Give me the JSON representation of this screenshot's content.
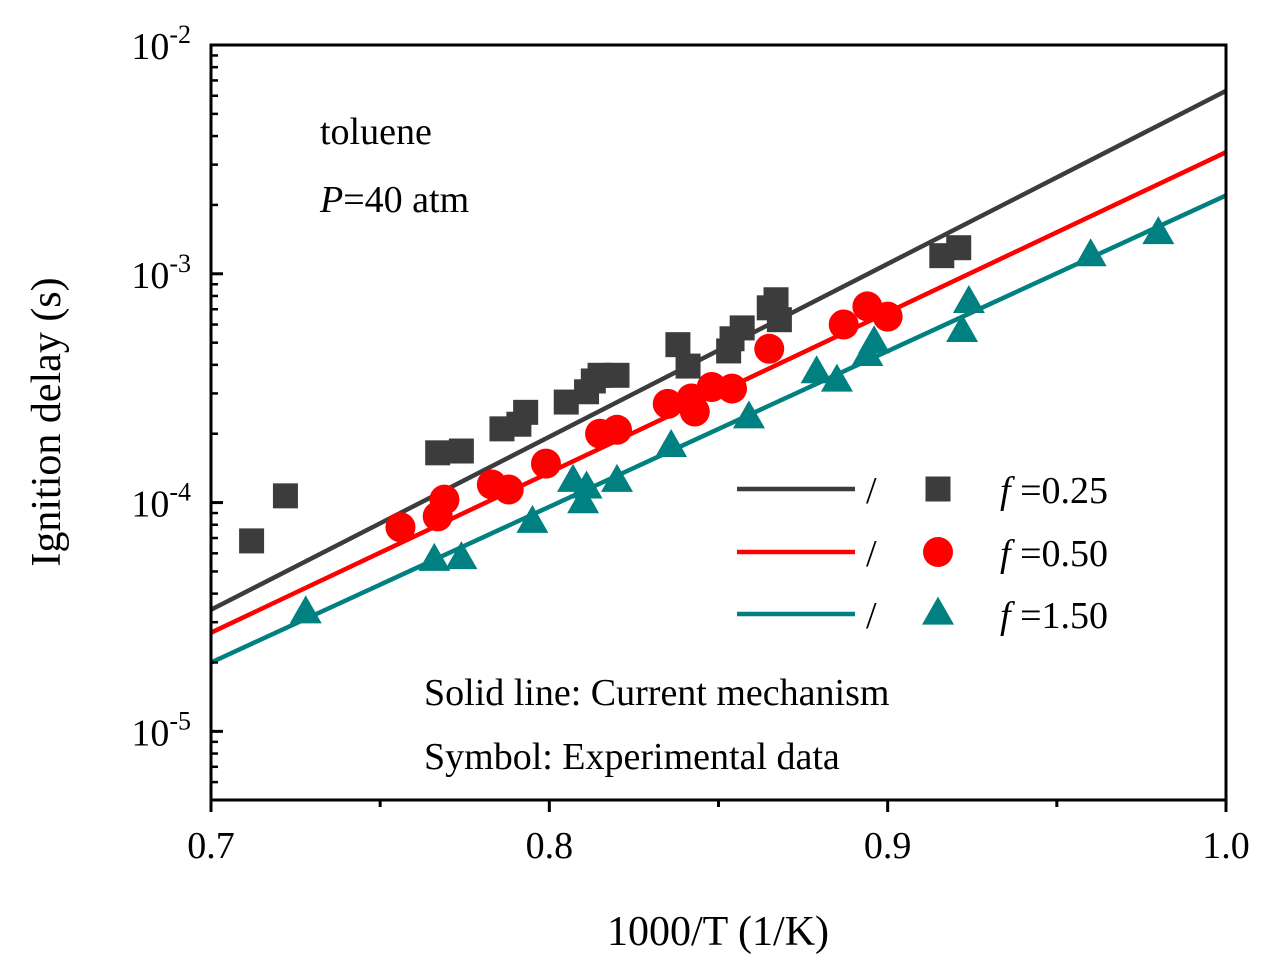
{
  "chart_data": {
    "type": "scatter",
    "xlabel": "1000/T (1/K)",
    "ylabel": "Ignition delay (s)",
    "xlim": [
      0.7,
      1.0
    ],
    "ylim_log10": [
      -5.3,
      -2.0
    ],
    "yscale": "log",
    "x_ticks": [
      {
        "value": 0.7,
        "label": "0.7"
      },
      {
        "value": 0.8,
        "label": "0.8"
      },
      {
        "value": 0.9,
        "label": "0.9"
      },
      {
        "value": 1.0,
        "label": "1.0"
      }
    ],
    "x_minor_ticks": [
      0.75,
      0.85,
      0.95
    ],
    "y_ticks": [
      {
        "exp": -2,
        "base": "10",
        "sup": "-2"
      },
      {
        "exp": -3,
        "base": "10",
        "sup": "-3"
      },
      {
        "exp": -4,
        "base": "10",
        "sup": "-4"
      },
      {
        "exp": -5,
        "base": "10",
        "sup": "-5"
      }
    ],
    "annotations": {
      "fuel": "toluene",
      "pressure_symbol": "P",
      "pressure_value": "=40 atm",
      "note_line": "Solid line: Current mechanism",
      "note_symbol": "Symbol: Experimental data"
    },
    "legend": {
      "placement": "center-right",
      "separator": "/",
      "phi_symbol": "f"
    },
    "series": [
      {
        "name": "=0.25",
        "color": "#3c3c3c",
        "marker": "square",
        "line": {
          "x": [
            0.7,
            1.0
          ],
          "y": [
            3.4e-05,
            0.0063
          ]
        },
        "points": [
          [
            0.712,
            6.8e-05
          ],
          [
            0.722,
            0.000107
          ],
          [
            0.767,
            0.000165
          ],
          [
            0.774,
            0.000168
          ],
          [
            0.786,
            0.00021
          ],
          [
            0.791,
            0.00022
          ],
          [
            0.793,
            0.000248
          ],
          [
            0.805,
            0.000275
          ],
          [
            0.811,
            0.000305
          ],
          [
            0.813,
            0.00034
          ],
          [
            0.815,
            0.00036
          ],
          [
            0.82,
            0.00036
          ],
          [
            0.838,
            0.00049
          ],
          [
            0.841,
            0.000395
          ],
          [
            0.853,
            0.00046
          ],
          [
            0.854,
            0.00052
          ],
          [
            0.857,
            0.00058
          ],
          [
            0.865,
            0.00071
          ],
          [
            0.867,
            0.00077
          ],
          [
            0.868,
            0.00063
          ],
          [
            0.916,
            0.0012
          ],
          [
            0.921,
            0.0013
          ]
        ]
      },
      {
        "name": "=0.50",
        "color": "#ff0000",
        "marker": "circle",
        "line": {
          "x": [
            0.7,
            1.0
          ],
          "y": [
            2.7e-05,
            0.0034
          ]
        },
        "points": [
          [
            0.756,
            7.8e-05
          ],
          [
            0.767,
            8.7e-05
          ],
          [
            0.769,
            0.000103
          ],
          [
            0.783,
            0.00012
          ],
          [
            0.788,
            0.000114
          ],
          [
            0.799,
            0.000148
          ],
          [
            0.815,
            0.0002
          ],
          [
            0.82,
            0.000208
          ],
          [
            0.835,
            0.00027
          ],
          [
            0.842,
            0.000285
          ],
          [
            0.843,
            0.00025
          ],
          [
            0.848,
            0.00032
          ],
          [
            0.854,
            0.000315
          ],
          [
            0.865,
            0.00047
          ],
          [
            0.887,
            0.0006
          ],
          [
            0.894,
            0.00072
          ],
          [
            0.9,
            0.00065
          ]
        ]
      },
      {
        "name": "=1.50",
        "color": "#008080",
        "marker": "triangle",
        "line": {
          "x": [
            0.7,
            1.0
          ],
          "y": [
            2e-05,
            0.0022
          ]
        },
        "points": [
          [
            0.728,
            3.3e-05
          ],
          [
            0.766,
            5.6e-05
          ],
          [
            0.774,
            5.7e-05
          ],
          [
            0.795,
            8.2e-05
          ],
          [
            0.807,
            0.000124
          ],
          [
            0.81,
            0.0001
          ],
          [
            0.811,
            0.000116
          ],
          [
            0.82,
            0.000124
          ],
          [
            0.836,
            0.000176
          ],
          [
            0.859,
            0.000235
          ],
          [
            0.879,
            0.00037
          ],
          [
            0.885,
            0.00034
          ],
          [
            0.894,
            0.00044
          ],
          [
            0.896,
            0.0005
          ],
          [
            0.922,
            0.00056
          ],
          [
            0.924,
            0.00075
          ],
          [
            0.96,
            0.0012
          ],
          [
            0.98,
            0.0015
          ]
        ]
      }
    ]
  }
}
